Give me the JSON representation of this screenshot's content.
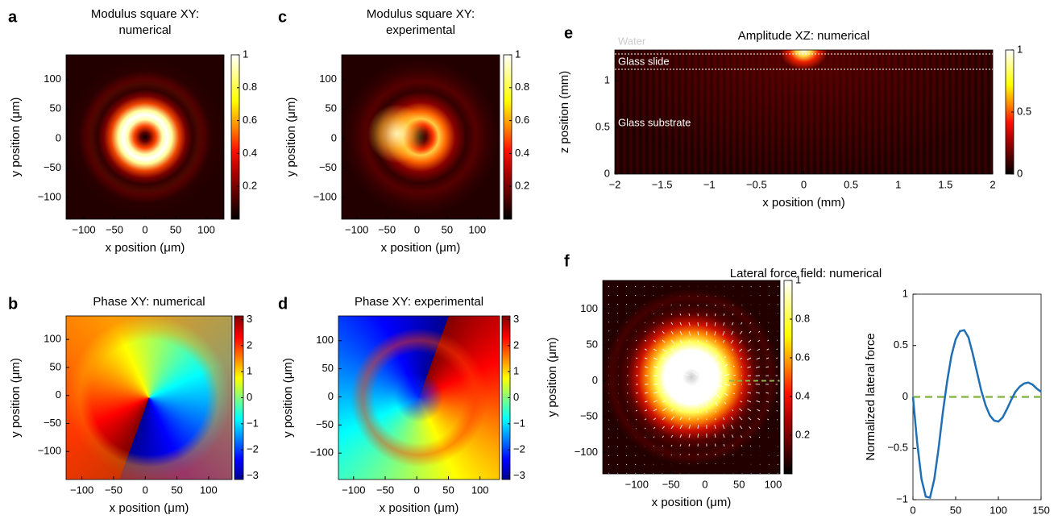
{
  "chart_data": [
    {
      "type": "heatmap",
      "label": "a",
      "title": [
        "Modulus square XY:",
        "numerical"
      ],
      "x_label": "x position (μm)",
      "y_label": "y position (μm)",
      "xlim": [
        -129,
        129
      ],
      "ylim": [
        -137,
        142
      ],
      "xticks": [
        {
          "value": -100,
          "label": "−100"
        },
        {
          "value": -50,
          "label": "−50"
        },
        0,
        50,
        100
      ],
      "yticks": [
        100,
        50,
        0,
        {
          "value": -50,
          "label": "−50"
        },
        {
          "value": -100,
          "label": "−100"
        }
      ],
      "colormap": "hot",
      "clim": [
        0,
        1
      ],
      "cticks": [
        1,
        0.8,
        0.6,
        0.4,
        0.2
      ]
    },
    {
      "type": "heatmap",
      "label": "b",
      "title": [
        "Phase XY: numerical"
      ],
      "x_label": "x position (μm)",
      "y_label": "y position (μm)",
      "xlim": [
        -125,
        137
      ],
      "ylim": [
        -150,
        142
      ],
      "xticks": [
        {
          "value": -100,
          "label": "−100"
        },
        {
          "value": -50,
          "label": "−50"
        },
        0,
        50,
        100
      ],
      "yticks": [
        100,
        50,
        0,
        {
          "value": -50,
          "label": "−50"
        },
        {
          "value": -100,
          "label": "−100"
        }
      ],
      "colormap": "jet",
      "clim": [
        -3.14,
        3.14
      ],
      "cticks": [
        3,
        2,
        1,
        0,
        {
          "value": -1,
          "label": "−1"
        },
        {
          "value": -2,
          "label": "−2"
        },
        {
          "value": -3,
          "label": "−3"
        }
      ]
    },
    {
      "type": "heatmap",
      "label": "c",
      "title": [
        "Modulus square XY:",
        "experimental"
      ],
      "x_label": "x position (μm)",
      "y_label": "y position (μm)",
      "xlim": [
        -125,
        137
      ],
      "ylim": [
        -137,
        142
      ],
      "xticks": [
        {
          "value": -100,
          "label": "−100"
        },
        {
          "value": -50,
          "label": "−50"
        },
        0,
        50,
        100
      ],
      "yticks": [
        100,
        50,
        0,
        {
          "value": -50,
          "label": "−50"
        },
        {
          "value": -100,
          "label": "−100"
        }
      ],
      "colormap": "hot",
      "clim": [
        0,
        1
      ],
      "cticks": [
        1,
        0.8,
        0.6,
        0.4,
        0.2
      ]
    },
    {
      "type": "heatmap",
      "label": "d",
      "title": [
        "Phase XY: experimental"
      ],
      "x_label": "x position (μm)",
      "y_label": "y position (μm)",
      "xlim": [
        -124,
        131
      ],
      "ylim": [
        -147,
        144
      ],
      "xticks": [
        {
          "value": -100,
          "label": "−100"
        },
        {
          "value": -50,
          "label": "−50"
        },
        0,
        50,
        100
      ],
      "yticks": [
        100,
        50,
        0,
        {
          "value": -50,
          "label": "−50"
        },
        {
          "value": -100,
          "label": "−100"
        }
      ],
      "colormap": "jet",
      "clim": [
        -3.14,
        3.14
      ],
      "cticks": [
        3,
        2,
        1,
        0,
        {
          "value": -1,
          "label": "−1"
        },
        {
          "value": -2,
          "label": "−2"
        },
        {
          "value": -3,
          "label": "−3"
        }
      ]
    },
    {
      "type": "heatmap",
      "label": "e",
      "title": [
        "Amplitude XZ: numerical"
      ],
      "x_label": "x position (mm)",
      "y_label": "z position (mm)",
      "xlim": [
        -2,
        2
      ],
      "ylim": [
        0,
        1.33
      ],
      "xticks": [
        {
          "value": -2,
          "label": "−2"
        },
        {
          "value": -1.5,
          "label": "−1.5"
        },
        {
          "value": -1,
          "label": "−1"
        },
        {
          "value": -0.5,
          "label": "−0.5"
        },
        0,
        0.5,
        1,
        1.5,
        2
      ],
      "yticks": [
        0,
        0.5,
        1
      ],
      "colormap": "hot",
      "clim": [
        0,
        1
      ],
      "cticks": [
        1,
        0.5,
        0
      ],
      "annotations": [
        "Water",
        "Glass slide",
        "Glass substrate"
      ]
    },
    {
      "type": "heatmap",
      "label": "f",
      "title": [
        "Lateral force field: numerical"
      ],
      "x_label": "x position (μm)",
      "y_label": "y position (μm)",
      "xlim": [
        -150,
        110
      ],
      "ylim": [
        -130,
        140
      ],
      "xticks": [
        {
          "value": -100,
          "label": "−100"
        },
        {
          "value": -50,
          "label": "−50"
        },
        0,
        50,
        100
      ],
      "yticks": [
        100,
        50,
        0,
        {
          "value": -50,
          "label": "−50"
        },
        {
          "value": -100,
          "label": "−100"
        }
      ],
      "colormap": "hot",
      "clim": [
        0,
        1
      ],
      "cticks": [
        1,
        0.8,
        0.6,
        0.4,
        0.2
      ]
    },
    {
      "type": "line",
      "x_label": "x position (μm)",
      "y_label": "Normalized lateral force",
      "xlim": [
        0,
        150
      ],
      "ylim": [
        -1,
        1
      ],
      "xticks": [
        0,
        50,
        100,
        150
      ],
      "yticks": [
        1,
        0.5,
        0,
        {
          "value": -0.5,
          "label": "−0.5"
        },
        {
          "value": -1,
          "label": "−1"
        }
      ],
      "x": [
        0,
        5,
        10,
        15,
        20,
        25,
        30,
        35,
        40,
        45,
        50,
        55,
        60,
        65,
        70,
        75,
        80,
        85,
        90,
        95,
        100,
        105,
        110,
        115,
        120,
        125,
        130,
        135,
        140,
        145,
        150
      ],
      "series": [
        {
          "color": "#1f6fb4",
          "values": [
            0,
            -0.45,
            -0.8,
            -0.97,
            -0.98,
            -0.8,
            -0.5,
            -0.15,
            0.15,
            0.4,
            0.56,
            0.64,
            0.65,
            0.58,
            0.42,
            0.24,
            0.06,
            -0.08,
            -0.18,
            -0.23,
            -0.24,
            -0.2,
            -0.12,
            -0.03,
            0.05,
            0.1,
            0.13,
            0.14,
            0.12,
            0.08,
            0.05
          ]
        }
      ],
      "reference_line": {
        "y": 0,
        "color": "#8ab84a"
      }
    }
  ]
}
